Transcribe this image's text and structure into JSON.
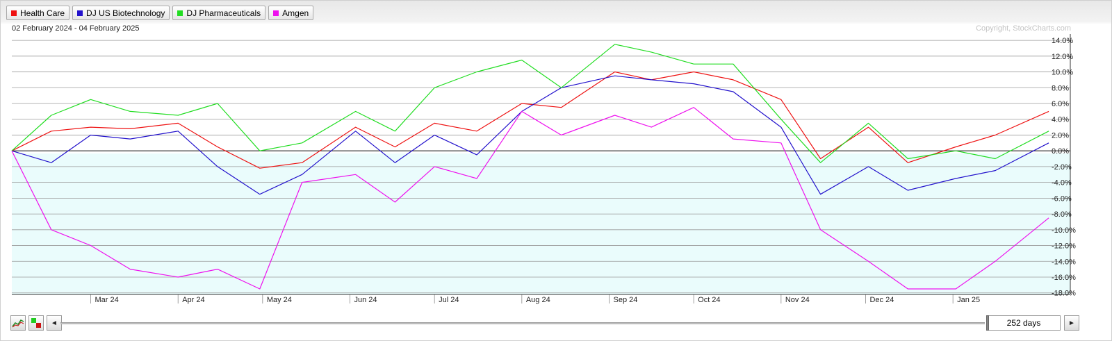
{
  "legend": [
    {
      "label": "Health Care",
      "color": "#ee1111"
    },
    {
      "label": "DJ US Biotechnology",
      "color": "#2211cc"
    },
    {
      "label": "DJ Pharmaceuticals",
      "color": "#22dd22"
    },
    {
      "label": "Amgen",
      "color": "#ee11ee"
    }
  ],
  "header": {
    "date_range": "02 February 2024 - 04 February 2025",
    "copyright": "Copyright, StockCharts.com"
  },
  "controls": {
    "range_label": "252 days",
    "scroll_left": "◄",
    "scroll_right": "►",
    "icons": [
      "line-chart-icon",
      "color-toggle-icon"
    ]
  },
  "chart_data": {
    "type": "line",
    "x_tick_labels": [
      "Mar 24",
      "Apr 24",
      "May 24",
      "Jun 24",
      "Jul 24",
      "Aug 24",
      "Sep 24",
      "Oct 24",
      "Nov 24",
      "Dec 24",
      "Jan 25"
    ],
    "y_tick_labels": [
      "14.0%",
      "12.0%",
      "10.0%",
      "8.0%",
      "6.0%",
      "4.0%",
      "2.0%",
      "0.0%",
      "-2.0%",
      "-4.0%",
      "-6.0%",
      "-8.0%",
      "-10.0%",
      "-12.0%",
      "-14.0%",
      "-16.0%",
      "-18.0%"
    ],
    "ylim": [
      -18.2,
      14.8
    ],
    "x_dates": [
      "2024-02-02",
      "2024-02-16",
      "2024-03-01",
      "2024-03-15",
      "2024-04-01",
      "2024-04-15",
      "2024-04-30",
      "2024-05-15",
      "2024-06-03",
      "2024-06-17",
      "2024-07-01",
      "2024-07-16",
      "2024-08-01",
      "2024-08-15",
      "2024-09-03",
      "2024-09-16",
      "2024-10-01",
      "2024-10-15",
      "2024-11-01",
      "2024-11-15",
      "2024-12-02",
      "2024-12-16",
      "2025-01-02",
      "2025-01-16",
      "2025-02-04"
    ],
    "grid": true,
    "series": [
      {
        "name": "Health Care",
        "color": "#ee1111",
        "values": [
          0,
          2.5,
          3,
          2.8,
          3.5,
          0.5,
          -2.2,
          -1.5,
          3,
          0.5,
          3.5,
          2.5,
          6,
          5.5,
          10,
          9,
          10,
          9,
          6.5,
          -1,
          3,
          -1.5,
          0.5,
          2,
          5
        ]
      },
      {
        "name": "DJ US Biotechnology",
        "color": "#2211cc",
        "values": [
          0,
          -1.5,
          2,
          1.5,
          2.5,
          -2,
          -5.5,
          -3,
          2.5,
          -1.5,
          2,
          -0.5,
          5,
          8,
          9.5,
          9,
          8.5,
          7.5,
          3,
          -5.5,
          -2,
          -5,
          -3.5,
          -2.5,
          1
        ]
      },
      {
        "name": "DJ Pharmaceuticals",
        "color": "#22dd22",
        "values": [
          0,
          4.5,
          6.5,
          5,
          4.5,
          6,
          0,
          1,
          5,
          2.5,
          8,
          10,
          11.5,
          8,
          13.5,
          12.5,
          11,
          11,
          4,
          -1.5,
          3.5,
          -1,
          0,
          -1,
          2.5
        ]
      },
      {
        "name": "Amgen",
        "color": "#ee11ee",
        "values": [
          0,
          -10,
          -12,
          -15,
          -16,
          -15,
          -17.5,
          -4,
          -3,
          -6.5,
          -2,
          -3.5,
          5,
          2,
          4.5,
          3,
          5.5,
          1.5,
          1,
          -10,
          -14,
          -17.5,
          -17.5,
          -14,
          -8.5
        ]
      }
    ]
  }
}
